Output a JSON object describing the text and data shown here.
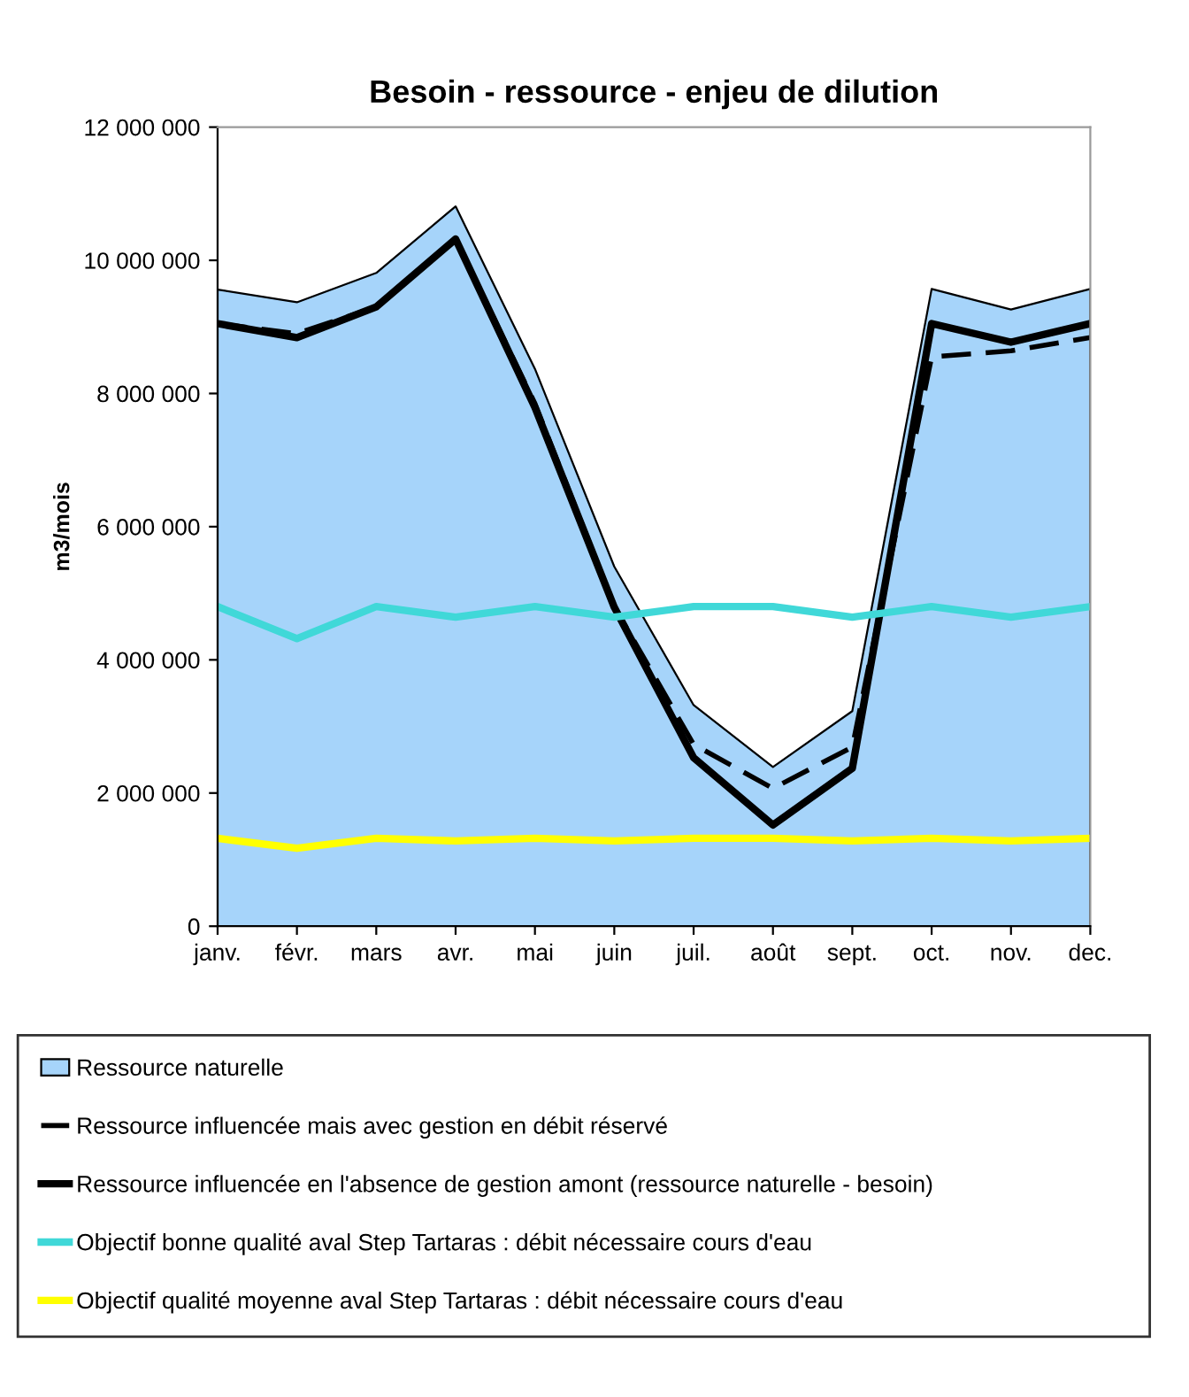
{
  "chart_data": {
    "type": "line",
    "title": "Besoin - ressource - enjeu de dilution",
    "ylabel": "m3/mois",
    "categories": [
      "janv.",
      "févr.",
      "mars",
      "avr.",
      "mai",
      "juin",
      "juil.",
      "août",
      "sept.",
      "oct.",
      "nov.",
      "dec."
    ],
    "series": [
      {
        "name": "Ressource naturelle",
        "type": "area",
        "color": "#a6d4fa",
        "values": [
          9560000,
          9370000,
          9810000,
          10810000,
          8370000,
          5400000,
          3320000,
          2390000,
          3230000,
          9570000,
          9260000,
          9570000
        ]
      },
      {
        "name": "Ressource influencée mais avec gestion en débit réservé",
        "line_style": "dashed",
        "color": "#000000",
        "values": [
          9050000,
          8900000,
          9300000,
          10320000,
          7850000,
          4800000,
          2730000,
          2070000,
          2690000,
          8550000,
          8640000,
          8840000
        ]
      },
      {
        "name": "Ressource influencée en l'absence de gestion amont (ressource naturelle - besoin)",
        "line_style": "solid",
        "color": "#000000",
        "values": [
          9050000,
          8840000,
          9300000,
          10320000,
          7790000,
          4790000,
          2530000,
          1520000,
          2370000,
          9050000,
          8770000,
          9050000
        ]
      },
      {
        "name": "Objectif bonne qualité aval Step Tartaras : débit nécessaire cours d'eau",
        "line_style": "solid",
        "color": "#40d8d8",
        "values": [
          4800000,
          4320000,
          4800000,
          4640000,
          4800000,
          4640000,
          4800000,
          4800000,
          4640000,
          4800000,
          4640000,
          4800000
        ]
      },
      {
        "name": "Objectif qualité moyenne aval Step Tartaras : débit nécessaire cours d'eau",
        "line_style": "solid",
        "color": "#ffff00",
        "values": [
          1320000,
          1170000,
          1320000,
          1280000,
          1320000,
          1280000,
          1320000,
          1320000,
          1280000,
          1320000,
          1280000,
          1320000
        ]
      }
    ],
    "ylim": [
      0,
      12000000
    ],
    "yticks": [
      0,
      {
        "value": 2000000,
        "label": "2 000 000"
      },
      {
        "value": 4000000,
        "label": "4 000 000"
      },
      {
        "value": 6000000,
        "label": "6 000 000"
      },
      {
        "value": 8000000,
        "label": "8 000 000"
      },
      {
        "value": 10000000,
        "label": "10 000 000"
      },
      {
        "value": 12000000,
        "label": "12 000 000"
      }
    ],
    "grid": false,
    "legend": "bottom",
    "marker": "none"
  }
}
